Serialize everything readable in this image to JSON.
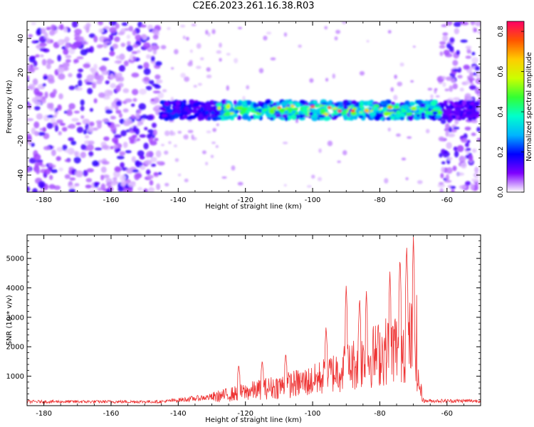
{
  "title": "C2E6.2023.261.16.38.R03",
  "colors": {
    "snr_line": "#ee3333",
    "colormap": [
      "#ffffff",
      "#7f00ff",
      "#0000ff",
      "#00b4ff",
      "#00ffcc",
      "#33ff33",
      "#ccff00",
      "#ffcc00",
      "#ff5500",
      "#ff0066"
    ]
  },
  "chart_data": [
    {
      "type": "heatmap",
      "xlabel": "Height of straight line (km)",
      "ylabel": "Frequency (Hz)",
      "xlim": [
        -185,
        -50
      ],
      "ylim": [
        -50,
        50
      ],
      "xticks": [
        -180,
        -160,
        -140,
        -120,
        -100,
        -80,
        -60
      ],
      "yticks": [
        -40,
        -20,
        0,
        20,
        40
      ],
      "colorbar": {
        "label": "Normalized spectral amplitude",
        "range": [
          0,
          0.85
        ],
        "ticks": [
          "0.0",
          "0.2",
          "0.4",
          "0.6",
          "0.8"
        ]
      },
      "features": {
        "noise_regions_x": [
          [
            -185,
            -145
          ],
          [
            -62,
            -50
          ]
        ],
        "signal_band_x": [
          -145,
          -51
        ],
        "signal_band_center_hz": -2,
        "signal_band_halfwidth_hz": 5,
        "peak_amplitude": 0.85
      }
    },
    {
      "type": "line",
      "xlabel": "Height of straight line (km)",
      "ylabel": "SNR (10 * v/v)",
      "xlim": [
        -185,
        -50
      ],
      "ylim": [
        0,
        5800
      ],
      "xticks": [
        -180,
        -160,
        -140,
        -120,
        -100,
        -80,
        -60
      ],
      "yticks": [
        1000,
        2000,
        3000,
        4000,
        5000
      ],
      "grid": false,
      "peaks": [
        {
          "x": -70,
          "y": 5750
        },
        {
          "x": -72,
          "y": 5500
        },
        {
          "x": -74,
          "y": 5100
        },
        {
          "x": -77,
          "y": 4550
        },
        {
          "x": -84,
          "y": 3900
        },
        {
          "x": -86,
          "y": 3700
        },
        {
          "x": -90,
          "y": 4100
        },
        {
          "x": -96,
          "y": 2700
        },
        {
          "x": -108,
          "y": 1800
        },
        {
          "x": -115,
          "y": 1550
        },
        {
          "x": -122,
          "y": 1400
        }
      ]
    }
  ]
}
